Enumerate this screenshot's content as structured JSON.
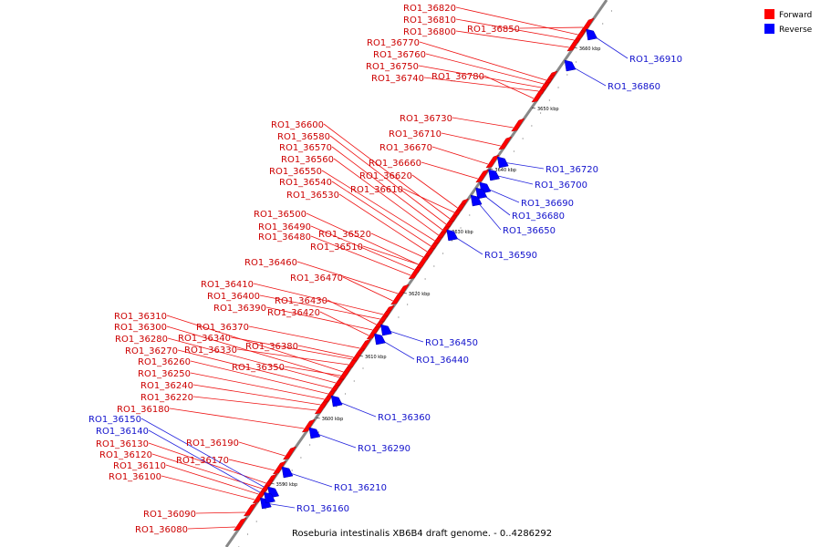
{
  "caption": "Roseburia intestinalis XB6B4 draft genome. - 0..4286292",
  "colors": {
    "forward": "#ff0000",
    "reverse": "#0000ff",
    "forward_line": "#ee1111",
    "reverse_line": "#2222dd",
    "backbone": "#888888"
  },
  "legend": [
    {
      "label": "Forward",
      "color": "#ff0000"
    },
    {
      "label": "Reverse",
      "color": "#0000ff"
    }
  ],
  "scale_ticks": [
    "3590 kbp",
    "3600 kbp",
    "3610 kbp",
    "3620 kbp",
    "3630 kbp",
    "3640 kbp",
    "3650 kbp",
    "3660 kbp"
  ],
  "forward_genes": [
    "RO1_36820",
    "RO1_36810",
    "RO1_36800",
    "RO1_36850",
    "RO1_36770",
    "RO1_36760",
    "RO1_36750",
    "RO1_36740",
    "RO1_36780",
    "RO1_36730",
    "RO1_36710",
    "RO1_36670",
    "RO1_36660",
    "RO1_36620",
    "RO1_36610",
    "RO1_36600",
    "RO1_36580",
    "RO1_36570",
    "RO1_36560",
    "RO1_36550",
    "RO1_36540",
    "RO1_36530",
    "RO1_36500",
    "RO1_36490",
    "RO1_36480",
    "RO1_36520",
    "RO1_36510",
    "RO1_36460",
    "RO1_36470",
    "RO1_36410",
    "RO1_36400",
    "RO1_36430",
    "RO1_36390",
    "RO1_36420",
    "RO1_36310",
    "RO1_36370",
    "RO1_36300",
    "RO1_36340",
    "RO1_36280",
    "RO1_36330",
    "RO1_36270",
    "RO1_36380",
    "RO1_36260",
    "RO1_36350",
    "RO1_36250",
    "RO1_36240",
    "RO1_36220",
    "RO1_36180",
    "RO1_36190",
    "RO1_36170",
    "RO1_36130",
    "RO1_36120",
    "RO1_36110",
    "RO1_36100",
    "RO1_36090",
    "RO1_36080"
  ],
  "reverse_genes": [
    "RO1_36910",
    "RO1_36860",
    "RO1_36720",
    "RO1_36700",
    "RO1_36690",
    "RO1_36680",
    "RO1_36650",
    "RO1_36590",
    "RO1_36450",
    "RO1_36440",
    "RO1_36360",
    "RO1_36290",
    "RO1_36210",
    "RO1_36160",
    "RO1_36150",
    "RO1_36140"
  ]
}
